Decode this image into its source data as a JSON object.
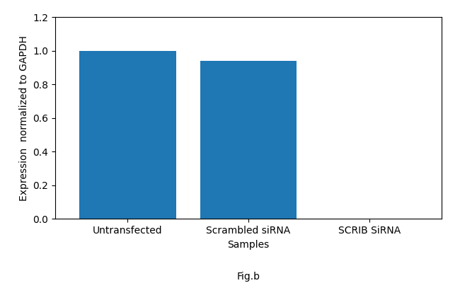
{
  "chart_data": {
    "type": "bar",
    "categories": [
      "Untransfected",
      "Scrambled siRNA",
      "SCRIB SiRNA"
    ],
    "values": [
      1.0,
      0.94,
      0.0
    ],
    "ylim": [
      0,
      1.2
    ],
    "yticks": [
      {
        "value": 0,
        "label": "0.0"
      },
      0.2,
      0.4,
      0.6,
      0.8,
      {
        "value": 1.0,
        "label": "1.0"
      },
      1.2
    ],
    "y_label": "Expression  normalized to GAPDH",
    "x_label": "Samples",
    "annotations": [
      "Fig.b"
    ],
    "grid": false
  }
}
